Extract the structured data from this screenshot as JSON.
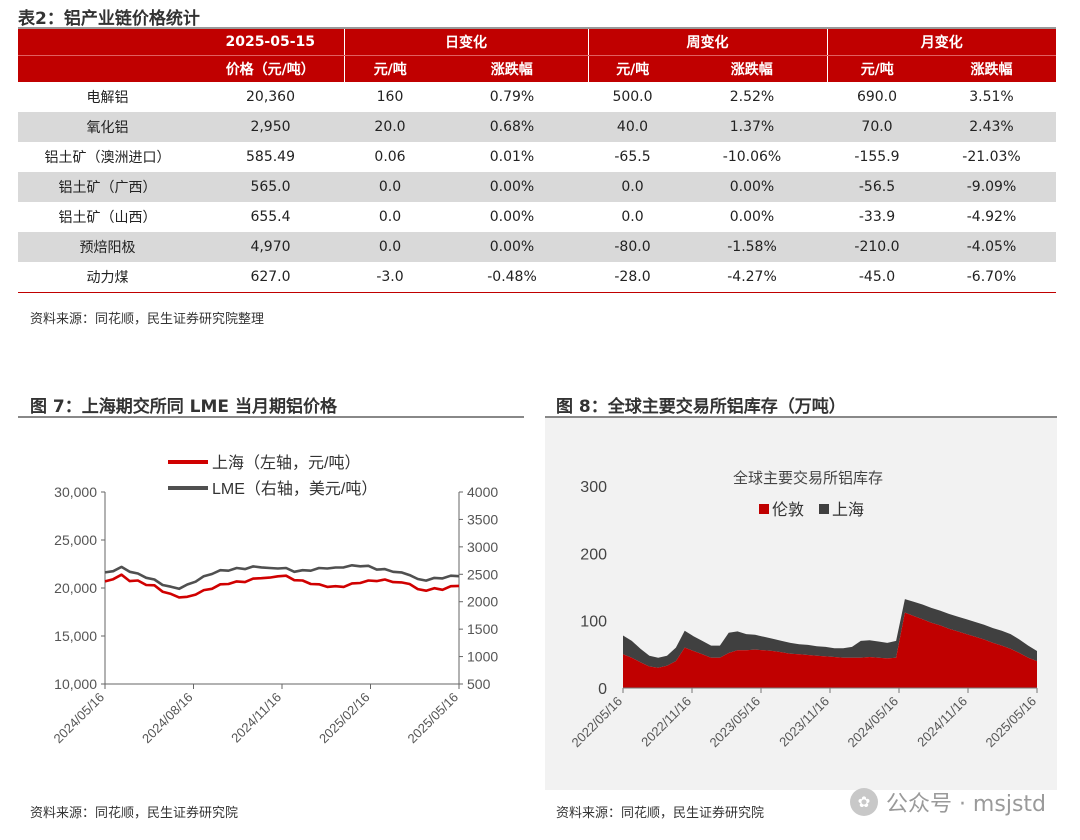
{
  "table": {
    "title": "表2：铝产业链价格统计",
    "header_top": {
      "date": "2025-05-15",
      "daily": "日变化",
      "weekly": "周变化",
      "monthly": "月变化"
    },
    "header_sub": {
      "price": "价格（元/吨）",
      "yuan_t": "元/吨",
      "pct": "涨跌幅"
    },
    "rows": [
      {
        "name": "电解铝",
        "price": "20,360",
        "d_abs": "160",
        "d_pct": "0.79%",
        "w_abs": "500.0",
        "w_pct": "2.52%",
        "m_abs": "690.0",
        "m_pct": "3.51%"
      },
      {
        "name": "氧化铝",
        "price": "2,950",
        "d_abs": "20.0",
        "d_pct": "0.68%",
        "w_abs": "40.0",
        "w_pct": "1.37%",
        "m_abs": "70.0",
        "m_pct": "2.43%"
      },
      {
        "name": "铝土矿（澳洲进口）",
        "price": "585.49",
        "d_abs": "0.06",
        "d_pct": "0.01%",
        "w_abs": "-65.5",
        "w_pct": "-10.06%",
        "m_abs": "-155.9",
        "m_pct": "-21.03%"
      },
      {
        "name": "铝土矿（广西）",
        "price": "565.0",
        "d_abs": "0.0",
        "d_pct": "0.00%",
        "w_abs": "0.0",
        "w_pct": "0.00%",
        "m_abs": "-56.5",
        "m_pct": "-9.09%"
      },
      {
        "name": "铝土矿（山西）",
        "price": "655.4",
        "d_abs": "0.0",
        "d_pct": "0.00%",
        "w_abs": "0.0",
        "w_pct": "0.00%",
        "m_abs": "-33.9",
        "m_pct": "-4.92%"
      },
      {
        "name": "预焙阳极",
        "price": "4,970",
        "d_abs": "0.0",
        "d_pct": "0.00%",
        "w_abs": "-80.0",
        "w_pct": "-1.58%",
        "m_abs": "-210.0",
        "m_pct": "-4.05%"
      },
      {
        "name": "动力煤",
        "price": "627.0",
        "d_abs": "-3.0",
        "d_pct": "-0.48%",
        "w_abs": "-28.0",
        "w_pct": "-4.27%",
        "m_abs": "-45.0",
        "m_pct": "-6.70%"
      }
    ],
    "source": "资料来源：同花顺，民生证券研究院整理"
  },
  "figure7": {
    "title": "图 7：上海期交所同 LME 当月期铝价格",
    "source": "资料来源：同花顺，民生证券研究院"
  },
  "figure8": {
    "title": "图 8：全球主要交易所铝库存（万吨）",
    "source": "资料来源：同花顺，民生证券研究院"
  },
  "watermark": {
    "icon": "wechat-icon",
    "text": "公众号 · msjstd"
  },
  "chart_data": [
    {
      "type": "line",
      "legend_placement": "top",
      "x_ticks": [
        "2024/05/16",
        "2024/08/16",
        "2024/11/16",
        "2025/02/16",
        "2025/05/16"
      ],
      "left_axis": {
        "ylim": [
          10000,
          30000
        ],
        "ticks": [
          "10,000",
          "15,000",
          "20,000",
          "25,000",
          "30,000"
        ]
      },
      "right_axis": {
        "ylim": [
          500,
          4000
        ],
        "ticks": [
          "500",
          "1000",
          "1500",
          "2000",
          "2500",
          "3000",
          "3500",
          "4000"
        ]
      },
      "series": [
        {
          "name": "上海（左轴，元/吨）",
          "axis": "left",
          "color": "#d00000",
          "values": [
            20600,
            21000,
            21300,
            20800,
            20700,
            20400,
            20200,
            19700,
            19300,
            19100,
            19000,
            19400,
            19700,
            20000,
            20300,
            20500,
            20600,
            20700,
            20900,
            21100,
            21000,
            21300,
            21200,
            20900,
            20700,
            20500,
            20300,
            20200,
            20100,
            20200,
            20400,
            20600,
            20700,
            20800,
            20800,
            20700,
            20500,
            20500,
            19800,
            19800,
            19900,
            19900,
            20100,
            20300
          ]
        },
        {
          "name": "LME（右轴，美元/吨）",
          "axis": "right",
          "color": "#505050",
          "values": [
            2520,
            2570,
            2620,
            2560,
            2500,
            2450,
            2390,
            2320,
            2260,
            2250,
            2300,
            2380,
            2450,
            2520,
            2560,
            2580,
            2600,
            2610,
            2630,
            2640,
            2600,
            2620,
            2600,
            2560,
            2560,
            2580,
            2600,
            2620,
            2610,
            2640,
            2650,
            2660,
            2640,
            2600,
            2580,
            2560,
            2520,
            2500,
            2400,
            2400,
            2420,
            2440,
            2460,
            2480
          ]
        }
      ]
    },
    {
      "type": "area",
      "title": "全球主要交易所铝库存",
      "legend_placement": "top",
      "x_ticks": [
        "2022/05/16",
        "2022/11/16",
        "2023/05/16",
        "2023/11/16",
        "2024/05/16",
        "2024/11/16",
        "2025/05/16"
      ],
      "ylim": [
        0,
        300
      ],
      "y_ticks": [
        "0",
        "100",
        "200",
        "300"
      ],
      "series": [
        {
          "name": "伦敦",
          "color": "#c00000",
          "values": [
            50,
            45,
            38,
            32,
            30,
            33,
            40,
            60,
            55,
            50,
            45,
            45,
            52,
            56,
            56,
            57,
            56,
            55,
            53,
            51,
            50,
            49,
            48,
            47,
            46,
            45,
            45,
            45,
            46,
            45,
            44,
            45,
            112,
            107,
            102,
            97,
            93,
            88,
            84,
            80,
            76,
            72,
            67,
            63,
            58,
            52,
            45,
            40
          ]
        },
        {
          "name": "上海",
          "color": "#404040",
          "values": [
            28,
            25,
            20,
            16,
            15,
            15,
            20,
            25,
            22,
            20,
            18,
            18,
            30,
            28,
            24,
            22,
            20,
            18,
            17,
            16,
            15,
            15,
            14,
            14,
            13,
            14,
            16,
            25,
            25,
            24,
            23,
            25,
            20,
            21,
            22,
            22,
            22,
            22,
            22,
            22,
            22,
            22,
            22,
            22,
            22,
            20,
            18,
            15
          ]
        }
      ]
    }
  ]
}
